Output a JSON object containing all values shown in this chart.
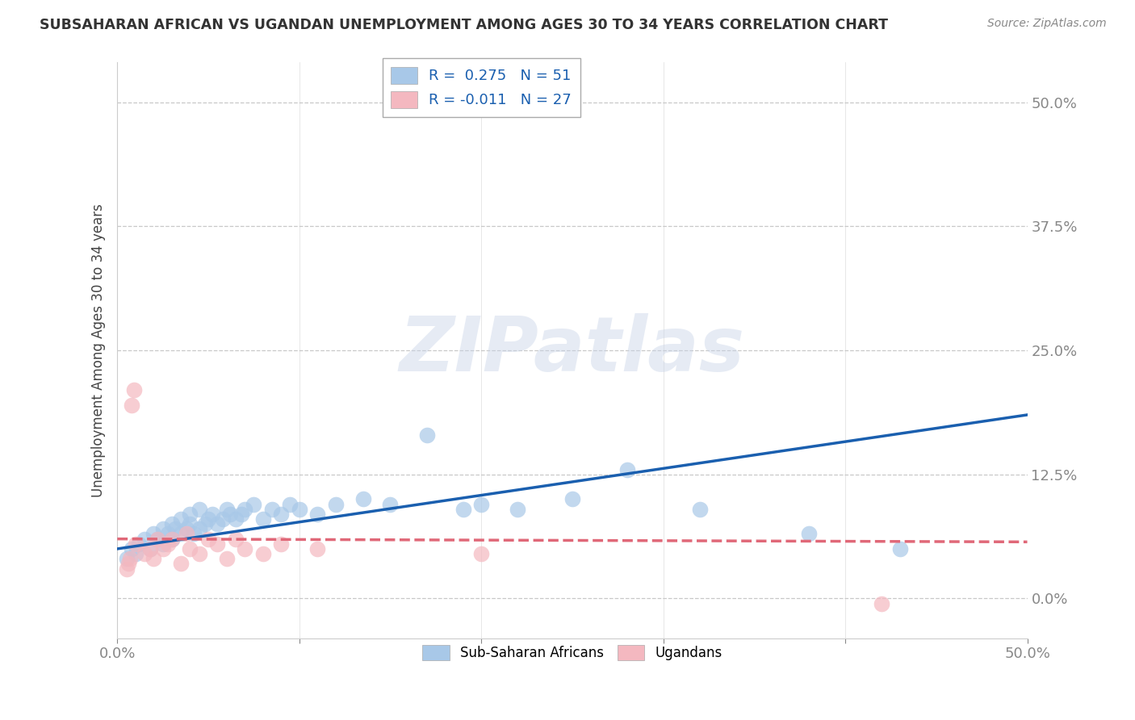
{
  "title": "SUBSAHARAN AFRICAN VS UGANDAN UNEMPLOYMENT AMONG AGES 30 TO 34 YEARS CORRELATION CHART",
  "source": "Source: ZipAtlas.com",
  "ylabel": "Unemployment Among Ages 30 to 34 years",
  "xlim": [
    0,
    0.5
  ],
  "ylim": [
    -0.04,
    0.54
  ],
  "xticks": [
    0.0,
    0.1,
    0.2,
    0.3,
    0.4,
    0.5
  ],
  "xtick_labels_show": [
    "0.0%",
    "",
    "",
    "",
    "",
    "50.0%"
  ],
  "yticks": [
    0.0,
    0.125,
    0.25,
    0.375,
    0.5
  ],
  "ytick_labels": [
    "0.0%",
    "12.5%",
    "25.0%",
    "37.5%",
    "50.0%"
  ],
  "blue_R": 0.275,
  "blue_N": 51,
  "pink_R": -0.011,
  "pink_N": 27,
  "blue_scatter_color": "#a8c8e8",
  "pink_scatter_color": "#f4b8c0",
  "blue_line_color": "#1a5faf",
  "pink_line_color": "#e06878",
  "yaxis_label_color": "#4a7abf",
  "xaxis_label_color": "#4a7abf",
  "legend_label_blue": "Sub-Saharan Africans",
  "legend_label_pink": "Ugandans",
  "watermark": "ZIPatlas",
  "background_color": "#ffffff",
  "grid_color": "#c8c8c8",
  "title_color": "#333333",
  "source_color": "#888888",
  "blue_x": [
    0.005,
    0.008,
    0.01,
    0.012,
    0.015,
    0.018,
    0.02,
    0.022,
    0.025,
    0.025,
    0.028,
    0.03,
    0.03,
    0.032,
    0.035,
    0.035,
    0.038,
    0.04,
    0.04,
    0.042,
    0.045,
    0.045,
    0.048,
    0.05,
    0.052,
    0.055,
    0.058,
    0.06,
    0.062,
    0.065,
    0.068,
    0.07,
    0.075,
    0.08,
    0.085,
    0.09,
    0.095,
    0.1,
    0.11,
    0.12,
    0.135,
    0.15,
    0.17,
    0.19,
    0.2,
    0.22,
    0.25,
    0.28,
    0.32,
    0.38,
    0.43
  ],
  "blue_y": [
    0.04,
    0.05,
    0.045,
    0.055,
    0.06,
    0.05,
    0.065,
    0.06,
    0.055,
    0.07,
    0.065,
    0.06,
    0.075,
    0.07,
    0.065,
    0.08,
    0.07,
    0.075,
    0.085,
    0.065,
    0.07,
    0.09,
    0.075,
    0.08,
    0.085,
    0.075,
    0.08,
    0.09,
    0.085,
    0.08,
    0.085,
    0.09,
    0.095,
    0.08,
    0.09,
    0.085,
    0.095,
    0.09,
    0.085,
    0.095,
    0.1,
    0.095,
    0.165,
    0.09,
    0.095,
    0.09,
    0.1,
    0.13,
    0.09,
    0.065,
    0.05
  ],
  "pink_x": [
    0.005,
    0.006,
    0.007,
    0.008,
    0.009,
    0.01,
    0.015,
    0.018,
    0.02,
    0.022,
    0.025,
    0.028,
    0.03,
    0.035,
    0.038,
    0.04,
    0.045,
    0.05,
    0.055,
    0.06,
    0.065,
    0.07,
    0.08,
    0.09,
    0.11,
    0.2,
    0.42
  ],
  "pink_y": [
    0.03,
    0.035,
    0.04,
    0.195,
    0.21,
    0.055,
    0.045,
    0.05,
    0.04,
    0.06,
    0.05,
    0.055,
    0.06,
    0.035,
    0.065,
    0.05,
    0.045,
    0.06,
    0.055,
    0.04,
    0.06,
    0.05,
    0.045,
    0.055,
    0.05,
    0.045,
    -0.005
  ],
  "blue_line_x0": 0.0,
  "blue_line_x1": 0.5,
  "blue_line_y0": 0.05,
  "blue_line_y1": 0.185,
  "pink_line_x0": 0.0,
  "pink_line_x1": 0.5,
  "pink_line_y0": 0.06,
  "pink_line_y1": 0.057
}
